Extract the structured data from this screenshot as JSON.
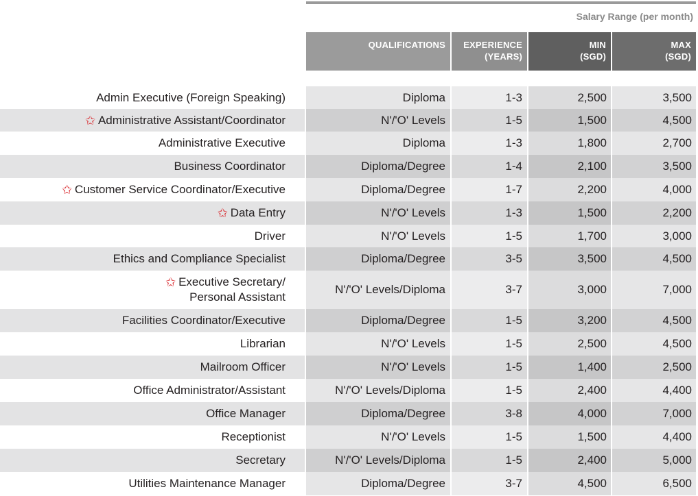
{
  "header": {
    "salary_range": "Salary Range (per month)",
    "columns": {
      "qualifications": "QUALIFICATIONS",
      "experience_l1": "EXPERIENCE",
      "experience_l2": "(YEARS)",
      "min_l1": "MIN",
      "min_l2": "(SGD)",
      "max_l1": "MAX",
      "max_l2": "(SGD)"
    }
  },
  "star_icon": "star-outline-icon",
  "star_color": "#d9262b",
  "rows": [
    {
      "title": "Admin Executive (Foreign Speaking)",
      "title2": "",
      "star": false,
      "qualifications": "Diploma",
      "experience": "1-3",
      "min": "2,500",
      "max": "3,500"
    },
    {
      "title": "Administrative Assistant/Coordinator",
      "title2": "",
      "star": true,
      "qualifications": "N'/'O' Levels",
      "experience": "1-5",
      "min": "1,500",
      "max": "4,500"
    },
    {
      "title": "Administrative Executive",
      "title2": "",
      "star": false,
      "qualifications": "Diploma",
      "experience": "1-3",
      "min": "1,800",
      "max": "2,700"
    },
    {
      "title": "Business Coordinator",
      "title2": "",
      "star": false,
      "qualifications": "Diploma/Degree",
      "experience": "1-4",
      "min": "2,100",
      "max": "3,500"
    },
    {
      "title": "Customer Service Coordinator/Executive",
      "title2": "",
      "star": true,
      "qualifications": "Diploma/Degree",
      "experience": "1-7",
      "min": "2,200",
      "max": "4,000"
    },
    {
      "title": "Data Entry",
      "title2": "",
      "star": true,
      "qualifications": "N'/'O' Levels",
      "experience": "1-3",
      "min": "1,500",
      "max": "2,200"
    },
    {
      "title": "Driver",
      "title2": "",
      "star": false,
      "qualifications": "N'/'O' Levels",
      "experience": "1-5",
      "min": "1,700",
      "max": "3,000"
    },
    {
      "title": "Ethics and Compliance Specialist",
      "title2": "",
      "star": false,
      "qualifications": "Diploma/Degree",
      "experience": "3-5",
      "min": "3,500",
      "max": "4,500"
    },
    {
      "title": "Executive Secretary/",
      "title2": "Personal Assistant",
      "star": true,
      "qualifications": "N'/'O' Levels/Diploma",
      "experience": "3-7",
      "min": "3,000",
      "max": "7,000"
    },
    {
      "title": "Facilities Coordinator/Executive",
      "title2": "",
      "star": false,
      "qualifications": "Diploma/Degree",
      "experience": "1-5",
      "min": "3,200",
      "max": "4,500"
    },
    {
      "title": "Librarian",
      "title2": "",
      "star": false,
      "qualifications": "N'/'O' Levels",
      "experience": "1-5",
      "min": "2,500",
      "max": "4,500"
    },
    {
      "title": "Mailroom Officer",
      "title2": "",
      "star": false,
      "qualifications": "N'/'O' Levels",
      "experience": "1-5",
      "min": "1,400",
      "max": "2,500"
    },
    {
      "title": "Office Administrator/Assistant",
      "title2": "",
      "star": false,
      "qualifications": "N'/'O' Levels/Diploma",
      "experience": "1-5",
      "min": "2,400",
      "max": "4,400"
    },
    {
      "title": "Office Manager",
      "title2": "",
      "star": false,
      "qualifications": "Diploma/Degree",
      "experience": "3-8",
      "min": "4,000",
      "max": "7,000"
    },
    {
      "title": "Receptionist",
      "title2": "",
      "star": false,
      "qualifications": "N'/'O' Levels",
      "experience": "1-5",
      "min": "1,500",
      "max": "4,400"
    },
    {
      "title": "Secretary",
      "title2": "",
      "star": false,
      "qualifications": "N'/'O' Levels/Diploma",
      "experience": "1-5",
      "min": "2,400",
      "max": "5,000"
    },
    {
      "title": "Utilities Maintenance Manager",
      "title2": "",
      "star": false,
      "qualifications": "Diploma/Degree",
      "experience": "3-7",
      "min": "4,500",
      "max": "6,500"
    }
  ]
}
